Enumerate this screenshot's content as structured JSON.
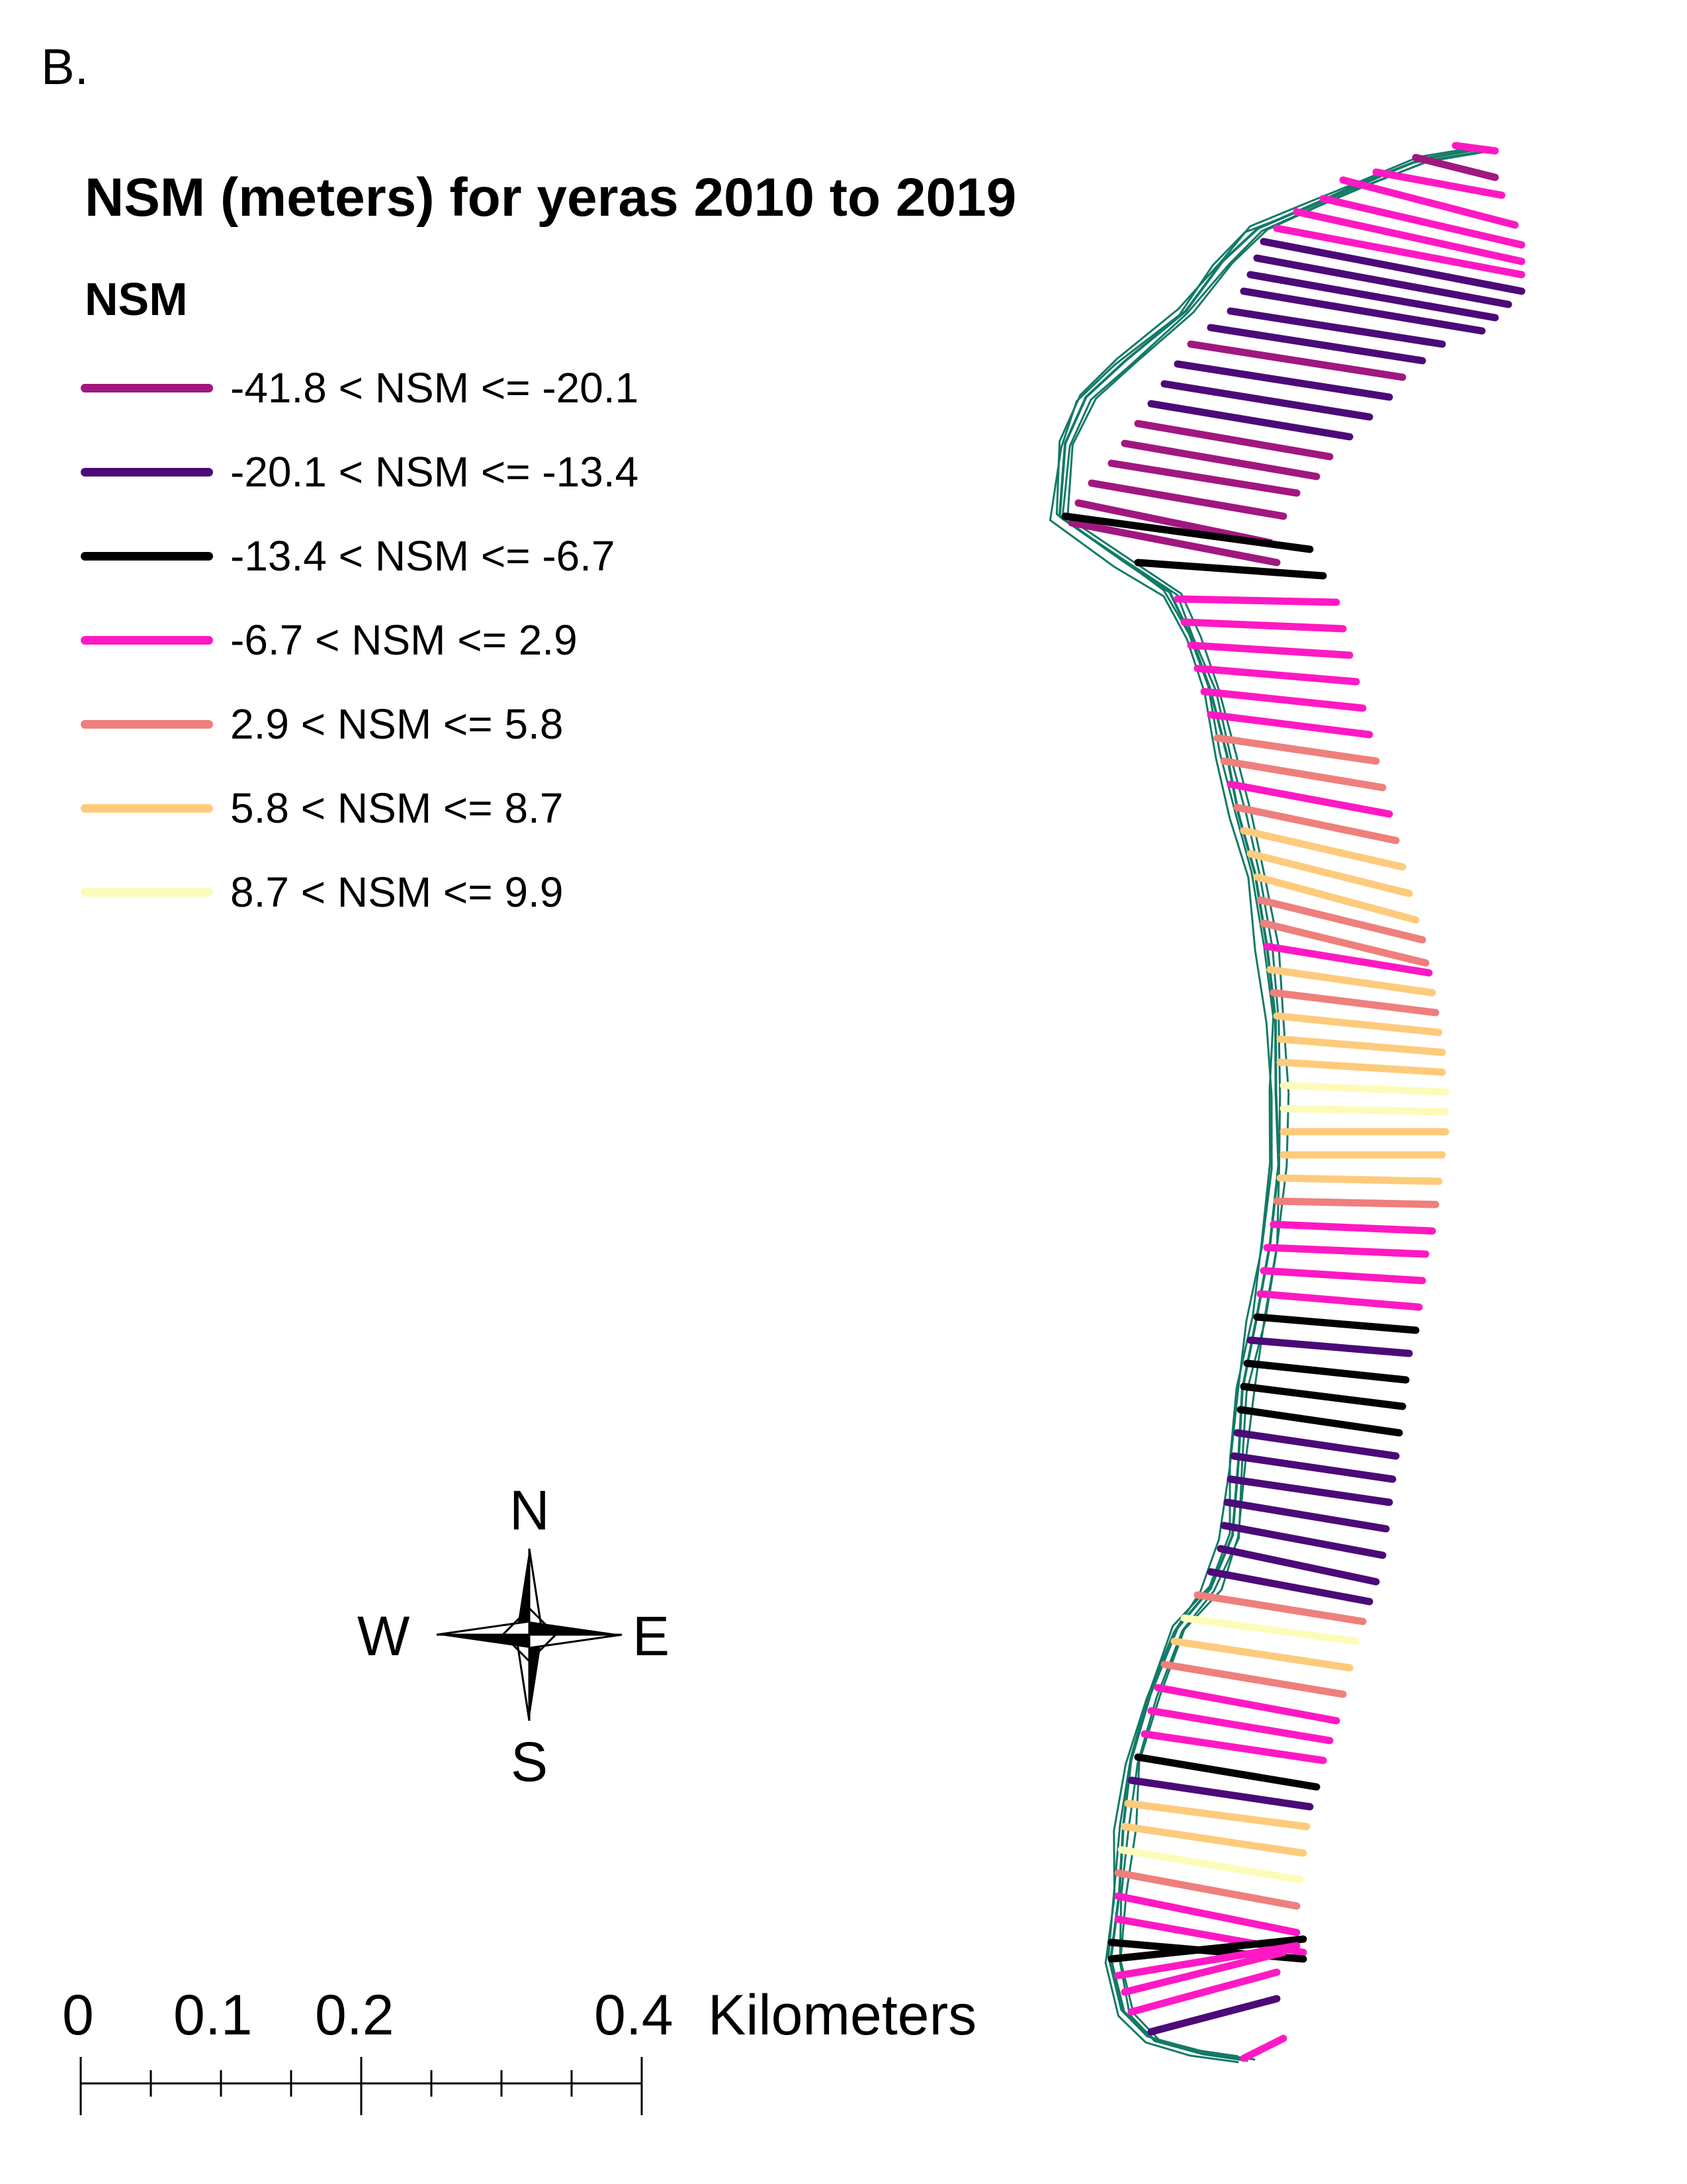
{
  "panel_label": "B.",
  "title": "NSM (meters) for yeras 2010 to 2019",
  "legend": {
    "heading": "NSM",
    "items": [
      {
        "label": "-41.8 < NSM <= -20.1",
        "color": "#a1177f"
      },
      {
        "label": "-20.1 < NSM <= -13.4",
        "color": "#4b0a78"
      },
      {
        "label": "-13.4 < NSM <= -6.7",
        "color": "#000000"
      },
      {
        "label": "-6.7 < NSM <= 2.9",
        "color": "#ff19c4"
      },
      {
        "label": "2.9 < NSM <= 5.8",
        "color": "#ef7f7c"
      },
      {
        "label": "5.8 < NSM <= 8.7",
        "color": "#fecb7c"
      },
      {
        "label": "8.7 < NSM <= 9.9",
        "color": "#fdfbba"
      }
    ]
  },
  "compass": {
    "n": "N",
    "s": "S",
    "e": "E",
    "w": "W"
  },
  "scale_bar": {
    "labels": [
      "0",
      "0.1",
      "0.2",
      "0.4"
    ],
    "unit": "Kilometers"
  },
  "colors": {
    "shoreline": "#137a66"
  }
}
